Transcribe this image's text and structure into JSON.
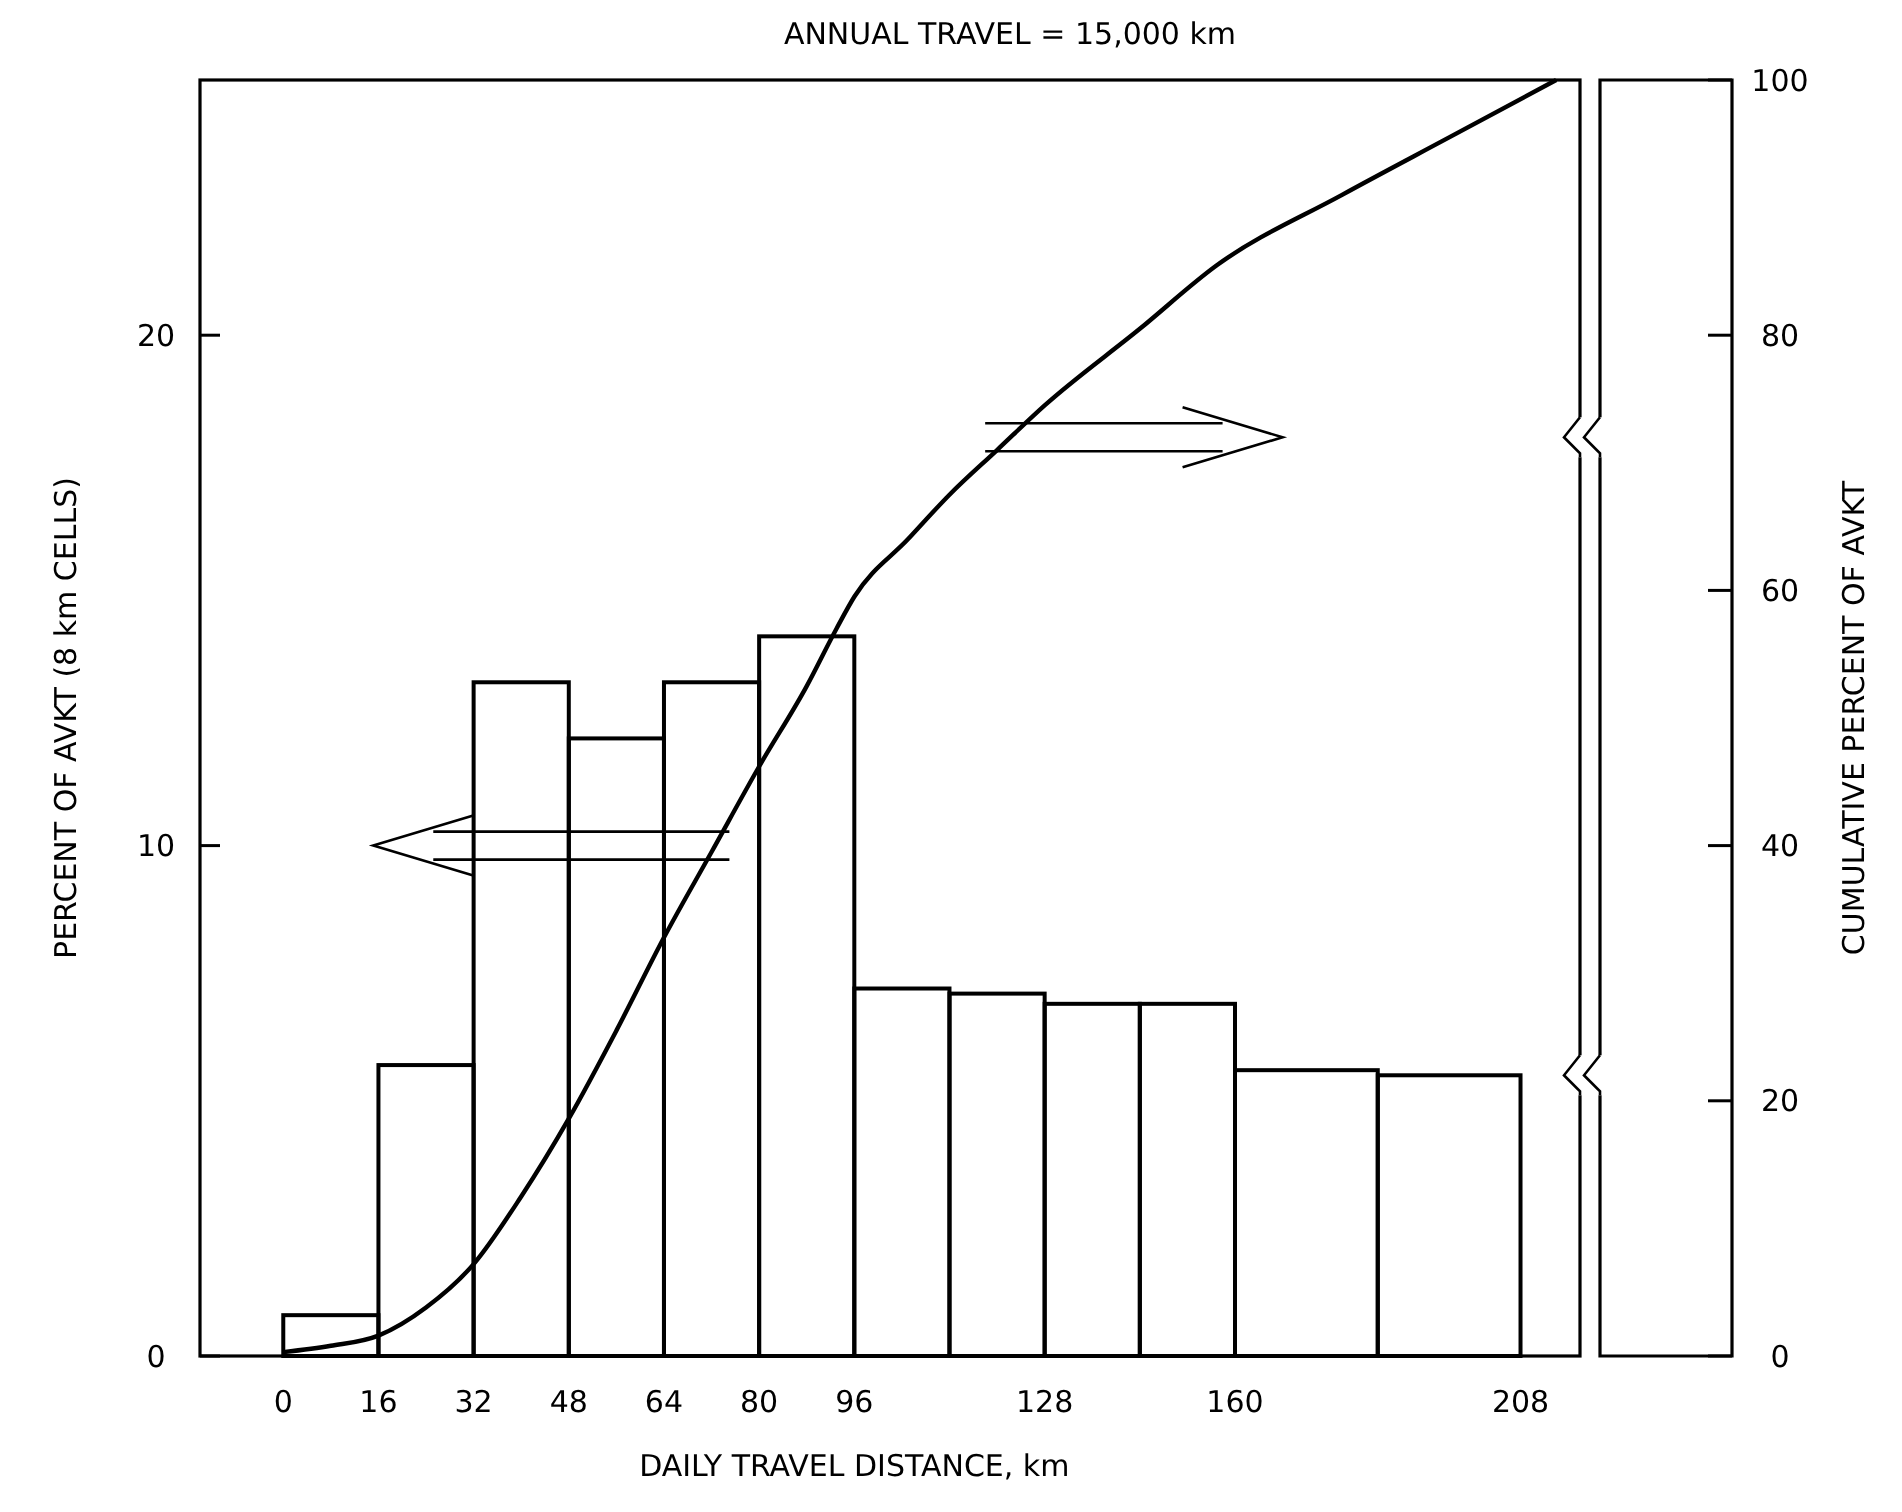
{
  "chart_data": {
    "type": "histogram",
    "title": "ANNUAL TRAVEL = 15,000 km",
    "xlabel": "DAILY TRAVEL DISTANCE, km",
    "ylabel": "PERCENT OF AVKT (8 km CELLS)",
    "y2label": "CUMULATIVE PERCENT OF AVKT",
    "xlim": [
      -14,
      218
    ],
    "xticks": [
      0,
      16,
      32,
      48,
      64,
      80,
      96,
      128,
      160,
      208
    ],
    "ylim": [
      0,
      25
    ],
    "yticks": [
      0,
      10,
      20
    ],
    "y2lim": [
      0,
      100
    ],
    "y2ticks": [
      0,
      20,
      40,
      60,
      80,
      100
    ],
    "grid": false,
    "series": [
      {
        "color": "#000000",
        "bins": [
          0,
          16,
          32,
          48,
          64,
          80,
          96,
          112,
          128,
          144,
          160,
          184,
          208
        ],
        "values": [
          0.8,
          5.7,
          13.2,
          12.1,
          13.2,
          14.1,
          7.2,
          7.1,
          6.9,
          6.9,
          5.6,
          5.5
        ]
      },
      {
        "type": "line",
        "axis": "y2",
        "color": "#000000",
        "x": [
          0,
          8,
          16,
          24,
          32,
          40,
          48,
          56,
          64,
          72,
          80,
          88,
          93,
          96,
          105,
          112,
          120,
          128,
          144,
          157,
          178,
          196,
          214
        ],
        "values": [
          0.3,
          0.8,
          1.6,
          3.8,
          7.2,
          12.5,
          18.6,
          25.5,
          32.8,
          39.5,
          46.2,
          52.5,
          57,
          59.5,
          64,
          67.5,
          71,
          74.5,
          80.5,
          85.5,
          91,
          95.5,
          100
        ]
      }
    ]
  }
}
